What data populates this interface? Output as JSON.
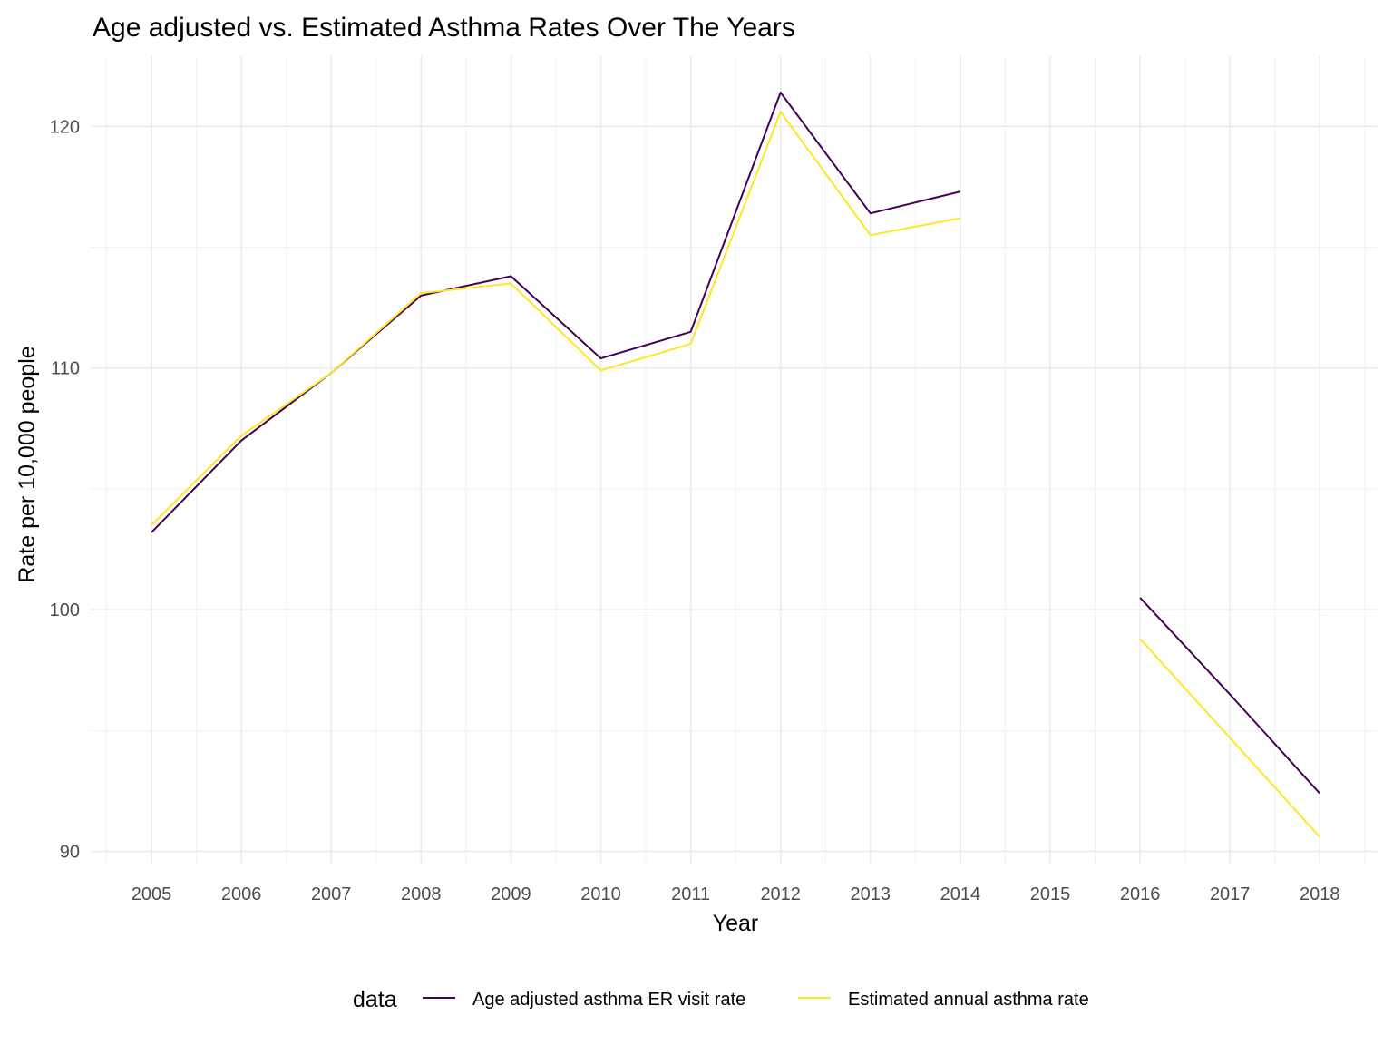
{
  "chart_data": {
    "type": "line",
    "title": "Age adjusted vs. Estimated Asthma Rates Over The Years",
    "xlabel": "Year",
    "ylabel": "Rate per 10,000 people",
    "categories": [
      "2005",
      "2006",
      "2007",
      "2008",
      "2009",
      "2010",
      "2011",
      "2012",
      "2013",
      "2014",
      "2015",
      "2016",
      "2017",
      "2018"
    ],
    "ylim": [
      89.5,
      122.9
    ],
    "yticks": [
      90,
      100,
      110,
      120
    ],
    "grid": true,
    "legend": {
      "title": "data",
      "position": "bottom"
    },
    "series": [
      {
        "name": "Age adjusted asthma ER visit rate",
        "color": "#440154",
        "values": [
          103.2,
          107.0,
          109.8,
          113.0,
          113.8,
          110.4,
          111.5,
          121.4,
          116.4,
          117.3,
          null,
          100.5,
          96.5,
          92.4
        ]
      },
      {
        "name": "Estimated annual asthma rate",
        "color": "#FDE725",
        "values": [
          103.5,
          107.2,
          109.8,
          113.1,
          113.5,
          109.9,
          111.0,
          120.6,
          115.5,
          116.2,
          null,
          98.8,
          94.7,
          90.6
        ]
      }
    ]
  }
}
